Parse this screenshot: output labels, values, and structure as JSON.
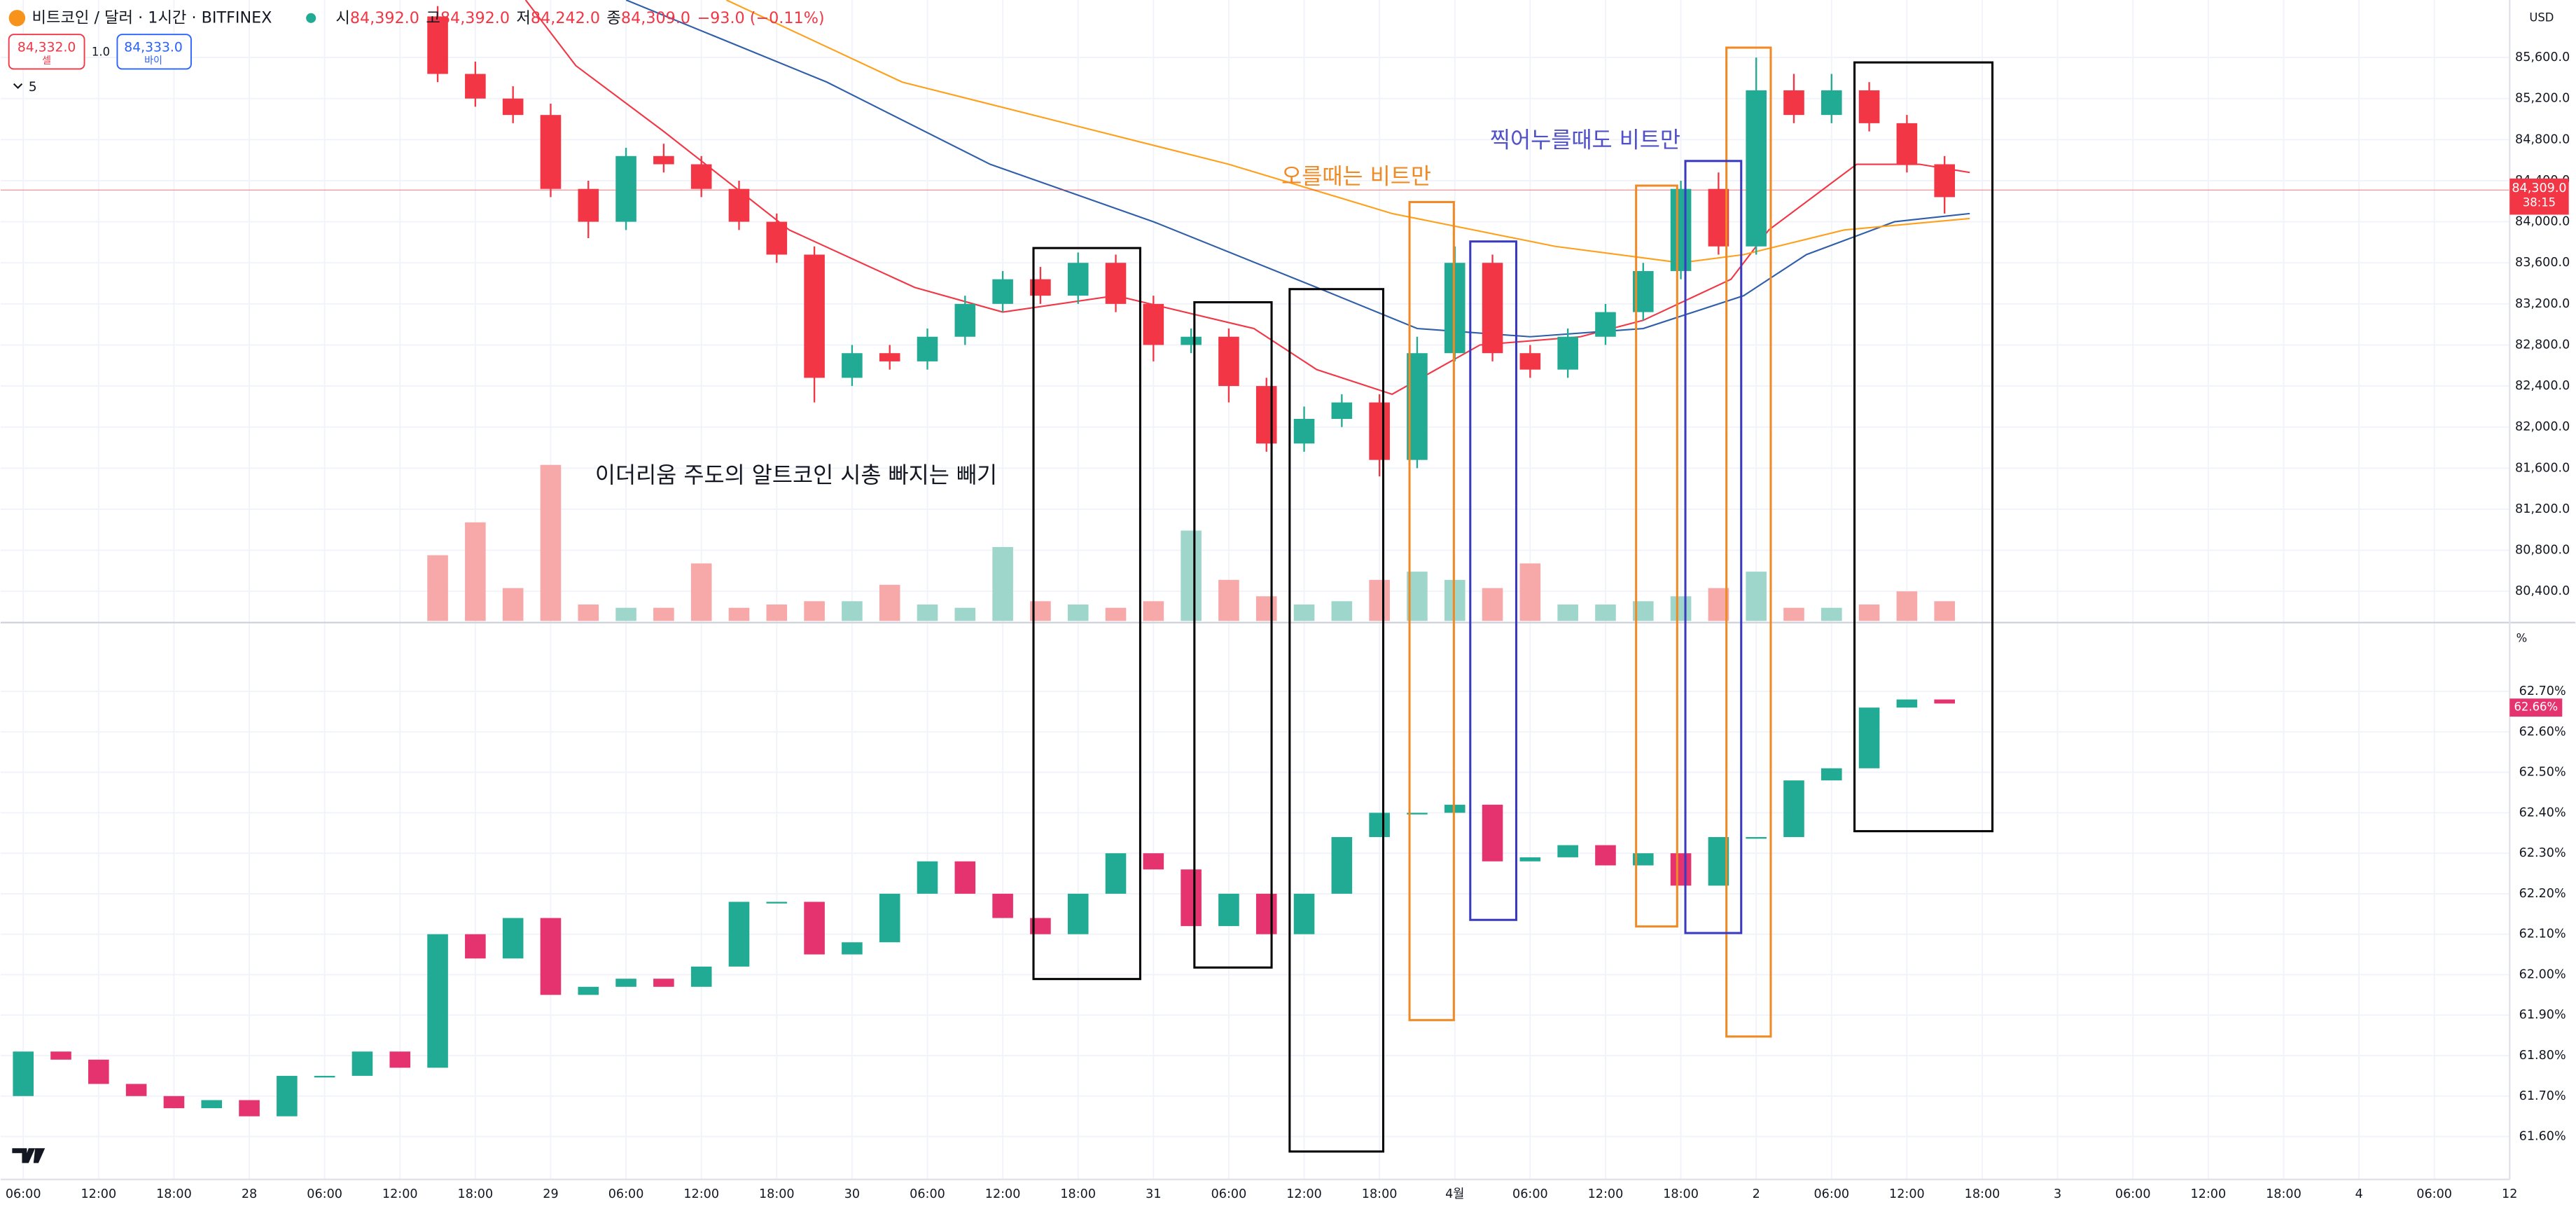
{
  "header": {
    "symbol": "비트코인 / 달러 · 1시간 · BITFINEX",
    "open_label": "시",
    "open": "84,392.0",
    "high_label": "고",
    "high": "84,392.0",
    "low_label": "저",
    "low": "84,242.0",
    "close_label": "종",
    "close": "84,309.0",
    "change": "−93.0 (−0.11%)",
    "sell_price": "84,332.0",
    "sell_label": "셀",
    "spread": "1.0",
    "buy_price": "84,333.0",
    "buy_label": "바이",
    "indicators_count": "5"
  },
  "chart_data": [
    {
      "type": "candlestick",
      "currency": "USD",
      "x": [
        39,
        42,
        45,
        48,
        51,
        54,
        57,
        60,
        63,
        66,
        69,
        72,
        75,
        78,
        81,
        84,
        87,
        90,
        93,
        96,
        99,
        102,
        105,
        108,
        111,
        114,
        117,
        120,
        123,
        126,
        129,
        132,
        135,
        138,
        141,
        144,
        147,
        150,
        153,
        156,
        159
      ],
      "open": [
        86000,
        85440,
        85200,
        85040,
        84320,
        84000,
        84640,
        84560,
        84320,
        84000,
        83680,
        82480,
        82720,
        82640,
        82880,
        83200,
        83440,
        83280,
        83600,
        83200,
        82800,
        82880,
        82400,
        81840,
        82080,
        82240,
        81680,
        82720,
        83600,
        82720,
        82560,
        82880,
        83120,
        83520,
        84320,
        83760,
        85280,
        85040,
        85280,
        84960,
        84560
      ],
      "high": [
        86100,
        85560,
        85320,
        85150,
        84400,
        84720,
        84760,
        84640,
        84400,
        84080,
        83760,
        82800,
        82800,
        82960,
        83280,
        83520,
        83560,
        83700,
        83680,
        83280,
        82960,
        82960,
        82480,
        82200,
        82320,
        82320,
        82880,
        83760,
        83680,
        82800,
        82960,
        83200,
        83600,
        84400,
        84480,
        85600,
        85440,
        85440,
        85360,
        85040,
        84640
      ],
      "low": [
        85360,
        85120,
        84960,
        84240,
        83840,
        83920,
        84480,
        84240,
        83920,
        83600,
        82240,
        82400,
        82560,
        82560,
        82800,
        83120,
        83200,
        83200,
        83120,
        82640,
        82720,
        82240,
        81760,
        81760,
        82000,
        81520,
        81600,
        82640,
        82640,
        82480,
        82480,
        82800,
        83040,
        83440,
        83680,
        83680,
        84960,
        84960,
        84880,
        84480,
        84080
      ],
      "close": [
        85440,
        85200,
        85040,
        84320,
        84000,
        84640,
        84560,
        84320,
        84000,
        83680,
        82480,
        82720,
        82640,
        82880,
        83200,
        83440,
        83280,
        83600,
        83200,
        82800,
        82880,
        82400,
        81840,
        82080,
        82240,
        81680,
        82720,
        83600,
        82720,
        82560,
        82880,
        83120,
        83520,
        84320,
        83760,
        85280,
        85040,
        85280,
        84960,
        84560,
        84240
      ],
      "up_color": "#22ab94",
      "down_color": "#f23645",
      "volume": [
        40,
        60,
        20,
        95,
        10,
        8,
        8,
        35,
        8,
        10,
        12,
        12,
        22,
        10,
        8,
        45,
        12,
        10,
        8,
        12,
        55,
        25,
        15,
        10,
        12,
        25,
        30,
        25,
        20,
        35,
        10,
        10,
        12,
        15,
        20,
        30,
        8,
        8,
        10,
        18,
        12
      ],
      "volume_up_color": "#9fd6cc",
      "volume_down_color": "#f7a8a8",
      "moving_averages": [
        {
          "color": "#f23645",
          "x": [
            46,
            50,
            57,
            67,
            77,
            84,
            93,
            104,
            109,
            115,
            122,
            130,
            135,
            142,
            145,
            152,
            157,
            161
          ],
          "values": [
            86160,
            85520,
            84880,
            83920,
            83360,
            83120,
            83280,
            82960,
            82560,
            82320,
            82800,
            82880,
            83040,
            83440,
            83920,
            84560,
            84560,
            84480
          ]
        },
        {
          "color": "#2f5fa8",
          "x": [
            54,
            70,
            83,
            96,
            109,
            117,
            126,
            135,
            143,
            148,
            155,
            161
          ],
          "values": [
            86160,
            85360,
            84560,
            84000,
            83360,
            82960,
            82880,
            82960,
            83280,
            83680,
            84000,
            84080
          ]
        },
        {
          "color": "#ff9f1a",
          "x": [
            62,
            76,
            89,
            102,
            115,
            128,
            138,
            143,
            151,
            161
          ],
          "values": [
            86160,
            85360,
            84960,
            84560,
            84080,
            83760,
            83600,
            83680,
            83920,
            84032
          ]
        }
      ],
      "xlim": [
        4.2,
        204
      ],
      "ylim": [
        80112,
        86160
      ],
      "yticks": [
        {
          "value": 85600,
          "label": "85,600.0"
        },
        {
          "value": 85200,
          "label": "85,200.0"
        },
        {
          "value": 84800,
          "label": "84,800.0"
        },
        {
          "value": 84400,
          "label": "84,400.0"
        },
        {
          "value": 84000,
          "label": "84,000.0"
        },
        {
          "value": 83600,
          "label": "83,600.0"
        },
        {
          "value": 83200,
          "label": "83,200.0"
        },
        {
          "value": 82800,
          "label": "82,800.0"
        },
        {
          "value": 82400,
          "label": "82,400.0"
        },
        {
          "value": 82000,
          "label": "82,000.0"
        },
        {
          "value": 81600,
          "label": "81,600.0"
        },
        {
          "value": 81200,
          "label": "81,200.0"
        },
        {
          "value": 80800,
          "label": "80,800.0"
        },
        {
          "value": 80400,
          "label": "80,400.0"
        }
      ],
      "last_price": {
        "value": 84309,
        "label": "84,309.0"
      },
      "countdown": "38:15",
      "annotations": [
        {
          "text": "오를때는 비트만",
          "color": "#f08a24"
        },
        {
          "text": "찍어누를때도 비트만",
          "color": "#5050c8"
        },
        {
          "text": "이더리움 주도의 알트코인 시총 빠지는 빼기",
          "color": "#131722"
        }
      ]
    },
    {
      "type": "candlestick",
      "unit": "%",
      "x": [
        6,
        9,
        12,
        15,
        18,
        21,
        24,
        27,
        30,
        33,
        36,
        39,
        42,
        45,
        48,
        51,
        54,
        57,
        60,
        63,
        66,
        69,
        72,
        75,
        78,
        81,
        84,
        87,
        90,
        93,
        96,
        99,
        102,
        105,
        108,
        111,
        114,
        117,
        120,
        123,
        126,
        129,
        132,
        135,
        138,
        141,
        144,
        147,
        150,
        153,
        156,
        159
      ],
      "open": [
        61.7,
        61.81,
        61.79,
        61.73,
        61.7,
        61.67,
        61.69,
        61.65,
        61.75,
        61.75,
        61.81,
        61.77,
        62.1,
        62.04,
        62.14,
        61.95,
        61.97,
        61.99,
        61.97,
        62.02,
        62.18,
        62.18,
        62.05,
        62.08,
        62.2,
        62.28,
        62.2,
        62.14,
        62.1,
        62.2,
        62.3,
        62.26,
        62.12,
        62.2,
        62.1,
        62.2,
        62.34,
        62.4,
        62.4,
        62.42,
        62.28,
        62.29,
        62.32,
        62.27,
        62.3,
        62.22,
        62.34,
        62.34,
        62.48,
        62.51,
        62.66,
        62.68
      ],
      "close": [
        61.81,
        61.79,
        61.73,
        61.7,
        61.67,
        61.69,
        61.65,
        61.75,
        61.75,
        61.81,
        61.77,
        62.1,
        62.04,
        62.14,
        61.95,
        61.97,
        61.99,
        61.97,
        62.02,
        62.18,
        62.18,
        62.05,
        62.08,
        62.2,
        62.28,
        62.2,
        62.14,
        62.1,
        62.2,
        62.3,
        62.26,
        62.12,
        62.2,
        62.1,
        62.2,
        62.34,
        62.4,
        62.4,
        62.42,
        62.28,
        62.29,
        62.32,
        62.27,
        62.3,
        62.22,
        62.34,
        62.34,
        62.48,
        62.51,
        62.66,
        62.68,
        62.67
      ],
      "up_color": "#22ab94",
      "down_color": "#e5336f",
      "xlim": [
        4.2,
        204
      ],
      "ylim": [
        61.494,
        62.866
      ],
      "yticks": [
        {
          "value": 62.7,
          "label": "62.70%"
        },
        {
          "value": 62.6,
          "label": "62.60%"
        },
        {
          "value": 62.5,
          "label": "62.50%"
        },
        {
          "value": 62.4,
          "label": "62.40%"
        },
        {
          "value": 62.3,
          "label": "62.30%"
        },
        {
          "value": 62.2,
          "label": "62.20%"
        },
        {
          "value": 62.1,
          "label": "62.10%"
        },
        {
          "value": 62.0,
          "label": "62.00%"
        },
        {
          "value": 61.9,
          "label": "61.90%"
        },
        {
          "value": 61.8,
          "label": "61.80%"
        },
        {
          "value": 61.7,
          "label": "61.70%"
        },
        {
          "value": 61.6,
          "label": "61.60%"
        }
      ],
      "xticks": [
        {
          "value": 6,
          "label": "06:00"
        },
        {
          "value": 12,
          "label": "12:00"
        },
        {
          "value": 18,
          "label": "18:00"
        },
        {
          "value": 24,
          "label": "28"
        },
        {
          "value": 30,
          "label": "06:00"
        },
        {
          "value": 36,
          "label": "12:00"
        },
        {
          "value": 42,
          "label": "18:00"
        },
        {
          "value": 48,
          "label": "29"
        },
        {
          "value": 54,
          "label": "06:00"
        },
        {
          "value": 60,
          "label": "12:00"
        },
        {
          "value": 66,
          "label": "18:00"
        },
        {
          "value": 72,
          "label": "30"
        },
        {
          "value": 78,
          "label": "06:00"
        },
        {
          "value": 84,
          "label": "12:00"
        },
        {
          "value": 90,
          "label": "18:00"
        },
        {
          "value": 96,
          "label": "31"
        },
        {
          "value": 102,
          "label": "06:00"
        },
        {
          "value": 108,
          "label": "12:00"
        },
        {
          "value": 114,
          "label": "18:00"
        },
        {
          "value": 120,
          "label": "4월"
        },
        {
          "value": 126,
          "label": "06:00"
        },
        {
          "value": 132,
          "label": "12:00"
        },
        {
          "value": 138,
          "label": "18:00"
        },
        {
          "value": 144,
          "label": "2"
        },
        {
          "value": 150,
          "label": "06:00"
        },
        {
          "value": 156,
          "label": "12:00"
        },
        {
          "value": 162,
          "label": "18:00"
        },
        {
          "value": 168,
          "label": "3"
        },
        {
          "value": 174,
          "label": "06:00"
        },
        {
          "value": 180,
          "label": "12:00"
        },
        {
          "value": 186,
          "label": "18:00"
        },
        {
          "value": 192,
          "label": "4"
        },
        {
          "value": 198,
          "label": "06:00"
        },
        {
          "value": 204,
          "label": "12"
        }
      ],
      "last_value": {
        "value": 62.66,
        "label": "62.66%"
      }
    }
  ]
}
